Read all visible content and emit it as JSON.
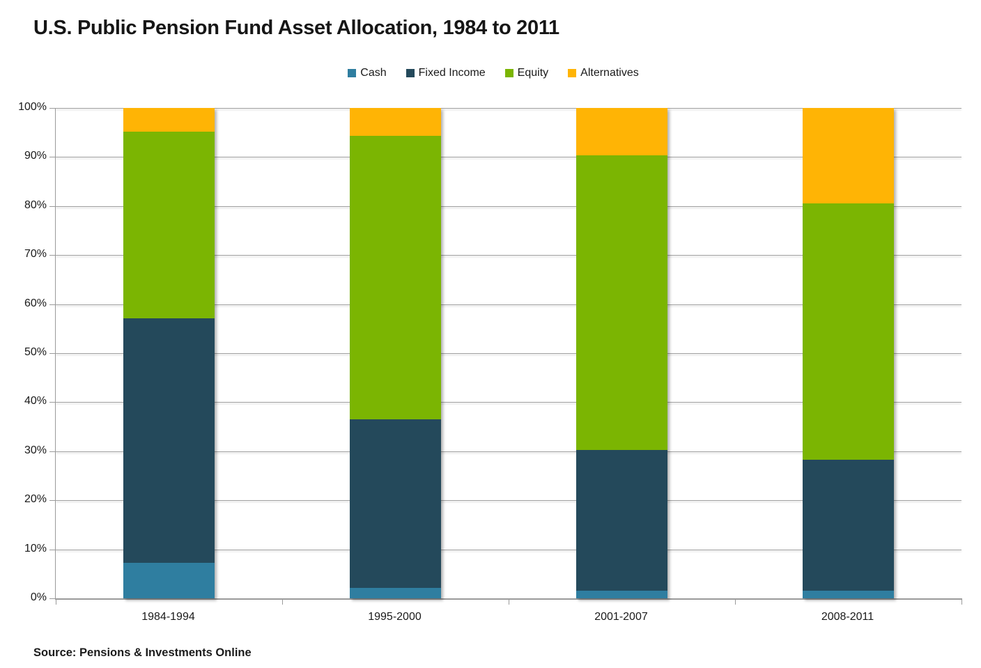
{
  "title": "U.S. Public Pension Fund Asset Allocation, 1984 to 2011",
  "source": "Source: Pensions & Investments Online",
  "colors": {
    "background": "#FFFFFF",
    "grid": "#A1A1A1",
    "axis": "#9A9A9A",
    "text": "#1A1A1A"
  },
  "chart_data": {
    "type": "bar",
    "stacked": true,
    "title": "U.S. Public Pension Fund Asset Allocation, 1984 to 2011",
    "xlabel": "",
    "ylabel": "",
    "ylim": [
      0,
      100
    ],
    "grid": true,
    "legend_position": "top",
    "categories": [
      "1984-1994",
      "1995-2000",
      "2001-2007",
      "2008-2011"
    ],
    "y_ticks": [
      "0%",
      "10%",
      "20%",
      "30%",
      "40%",
      "50%",
      "60%",
      "70%",
      "80%",
      "90%",
      "100%"
    ],
    "series": [
      {
        "name": "Cash",
        "color": "#2F7EA0",
        "values": [
          7.2,
          2.1,
          1.6,
          1.6
        ]
      },
      {
        "name": "Fixed Income",
        "color": "#24495B",
        "values": [
          49.9,
          34.4,
          28.7,
          26.7
        ]
      },
      {
        "name": "Equity",
        "color": "#7BB502",
        "values": [
          38.1,
          57.8,
          60.1,
          52.3
        ]
      },
      {
        "name": "Alternatives",
        "color": "#FFB405",
        "values": [
          4.8,
          5.7,
          9.6,
          19.4
        ]
      }
    ]
  }
}
